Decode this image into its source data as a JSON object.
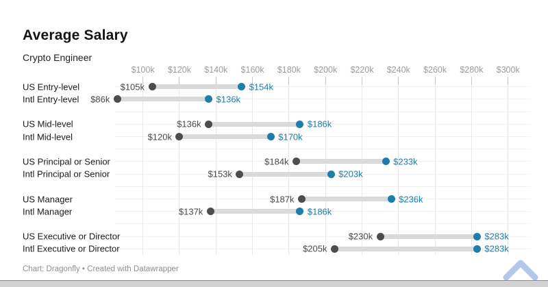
{
  "header": {
    "title": "Average Salary",
    "subtitle": "Crypto Engineer"
  },
  "footer": {
    "credit": "Chart: Dragonfly • Created with Datawrapper"
  },
  "logo": {
    "name": "chevron-up",
    "color": "#b4c8ec"
  },
  "colors": {
    "low_dot": "#4d4d4d",
    "high_dot": "#1d7dab",
    "bar": "#dadada",
    "gridline": "#e9e9e9",
    "tickmark": "#c6c6c6",
    "row_line": "#f1f1f1",
    "axis_text": "#9b9b9b",
    "low_value_text": "#4a4a4a",
    "high_value_text": "#1d7dab"
  },
  "chart_data": {
    "type": "dumbbell",
    "title": "Average Salary",
    "subtitle": "Crypto Engineer",
    "unit": "USD (thousands)",
    "legend": "none",
    "grid": "on",
    "axis": {
      "min": 100,
      "max": 300,
      "tick_values": [
        100,
        120,
        140,
        160,
        180,
        200,
        220,
        240,
        260,
        280,
        300
      ],
      "tick_labels": [
        "$100k",
        "$120k",
        "$140k",
        "$160k",
        "$180k",
        "$200k",
        "$220k",
        "$240k",
        "$260k",
        "$280k",
        "$300k"
      ]
    },
    "series_meta": [
      {
        "name": "low",
        "color": "#4d4d4d"
      },
      {
        "name": "high",
        "color": "#1d7dab"
      }
    ],
    "rows": [
      {
        "label": "US Entry-level",
        "low": 105,
        "high": 154,
        "low_label": "$105k",
        "high_label": "$154k"
      },
      {
        "label": "Intl Entry-level",
        "low": 86,
        "high": 136,
        "low_label": "$86k",
        "high_label": "$136k"
      },
      {
        "label": "US Mid-level",
        "low": 136,
        "high": 186,
        "low_label": "$136k",
        "high_label": "$186k"
      },
      {
        "label": "Intl Mid-level",
        "low": 120,
        "high": 170,
        "low_label": "$120k",
        "high_label": "$170k"
      },
      {
        "label": "US Principal or Senior",
        "low": 184,
        "high": 233,
        "low_label": "$184k",
        "high_label": "$233k"
      },
      {
        "label": "Intl Principal or Senior",
        "low": 153,
        "high": 203,
        "low_label": "$153k",
        "high_label": "$203k"
      },
      {
        "label": "US Manager",
        "low": 187,
        "high": 236,
        "low_label": "$187k",
        "high_label": "$236k"
      },
      {
        "label": "Intl Manager",
        "low": 137,
        "high": 186,
        "low_label": "$137k",
        "high_label": "$186k"
      },
      {
        "label": "US Executive or Director",
        "low": 230,
        "high": 283,
        "low_label": "$230k",
        "high_label": "$283k"
      },
      {
        "label": "Intl Executive or Director",
        "low": 205,
        "high": 283,
        "low_label": "$205k",
        "high_label": "$283k"
      }
    ]
  }
}
